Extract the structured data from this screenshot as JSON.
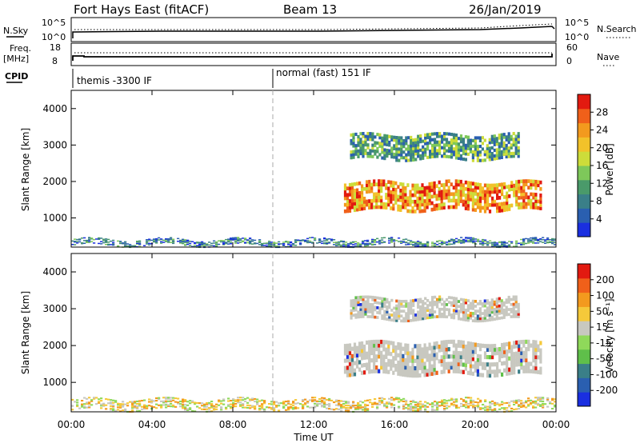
{
  "header": {
    "station": "Fort Hays East (fitACF)",
    "beam": "Beam 13",
    "date": "26/Jan/2019"
  },
  "strips": {
    "nsky_label": "N.Sky",
    "nsky_ticks": [
      "10^5",
      "10^0"
    ],
    "nsearch_label": "N.Search",
    "nsearch_ticks": [
      "10^5",
      "10^0"
    ],
    "freq_label": "Freq.",
    "freq_unit": "[MHz]",
    "freq_ticks": [
      "18",
      "8"
    ],
    "nave_label": "Nave",
    "nave_ticks": [
      "60",
      "0"
    ],
    "cpid_label": "CPID",
    "cpid_segments": [
      "themis -3300 IF",
      "normal (fast) 151 IF"
    ]
  },
  "colors": {
    "power_scale": [
      "#1a2fe0",
      "#2a5fb0",
      "#3a7f88",
      "#4a9a6a",
      "#7ec85a",
      "#cddc3a",
      "#f2c22a",
      "#f39a1e",
      "#f0601a",
      "#e21a10"
    ],
    "velocity_scale": [
      "#1a2fe0",
      "#2a5fb0",
      "#3a7f88",
      "#5fbf4a",
      "#8fd95a",
      "#c8c8c0",
      "#f5c93a",
      "#f39a1e",
      "#f0601a",
      "#e21a10"
    ]
  },
  "chart_data": [
    {
      "type": "heatmap",
      "name": "power",
      "ylabel": "Slant Range [km]",
      "ylim": [
        200,
        4500
      ],
      "yticks": [
        "4000",
        "3000",
        "2000",
        "1000"
      ],
      "xlim": [
        "00:00",
        "24:00"
      ],
      "colorbar_label": "Power [dB]",
      "colorbar_ticks": [
        "28",
        "24",
        "20",
        "16",
        "12",
        "8",
        "4"
      ],
      "bands": [
        {
          "t_start": 0.0,
          "t_end": 24.0,
          "r_low": 250,
          "r_high": 420,
          "level": "low"
        },
        {
          "t_start": 13.5,
          "t_end": 23.3,
          "r_low": 1200,
          "r_high": 2000,
          "level": "high"
        },
        {
          "t_start": 13.8,
          "t_end": 22.2,
          "r_low": 2600,
          "r_high": 3300,
          "level": "mid"
        }
      ]
    },
    {
      "type": "heatmap",
      "name": "velocity",
      "ylabel": "Slant Range [km]",
      "ylim": [
        200,
        4500
      ],
      "yticks": [
        "4000",
        "3000",
        "2000",
        "1000"
      ],
      "xlabel": "Time UT",
      "xticks": [
        "00:00",
        "04:00",
        "08:00",
        "12:00",
        "16:00",
        "20:00",
        "00:00"
      ],
      "colorbar_label": "Velocity [m s⁻¹]",
      "colorbar_ticks": [
        "200",
        "100",
        "50",
        "15",
        "-15",
        "-50",
        "-100",
        "-200"
      ],
      "bands": [
        {
          "t_start": 0.0,
          "t_end": 24.0,
          "r_low": 250,
          "r_high": 550,
          "level": "low"
        },
        {
          "t_start": 13.5,
          "t_end": 23.3,
          "r_low": 1200,
          "r_high": 2100,
          "level": "mid"
        },
        {
          "t_start": 13.8,
          "t_end": 22.2,
          "r_low": 2700,
          "r_high": 3300,
          "level": "mid"
        }
      ]
    }
  ]
}
